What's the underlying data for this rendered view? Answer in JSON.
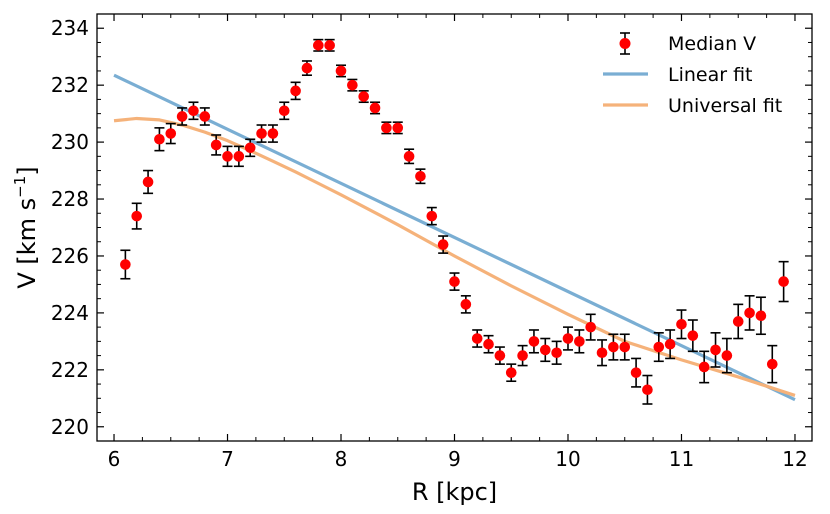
{
  "chart_data": {
    "type": "scatter",
    "title": "",
    "xlabel": "R [kpc]",
    "ylabel": "V [km s",
    "ylabel_sup": "−1",
    "ylabel_end": "]",
    "xlim": [
      5.85,
      12.15
    ],
    "ylim": [
      219.5,
      234.5
    ],
    "xticks": [
      "6",
      "7",
      "8",
      "9",
      "10",
      "11",
      "12"
    ],
    "yticks": [
      "220",
      "222",
      "224",
      "226",
      "228",
      "230",
      "232",
      "234"
    ],
    "legend_position": "top-right",
    "series": [
      {
        "name": "Median V",
        "kind": "points-with-errorbars",
        "color": "#ff0000",
        "x": [
          6.1,
          6.2,
          6.3,
          6.4,
          6.5,
          6.6,
          6.7,
          6.8,
          6.9,
          7.0,
          7.1,
          7.2,
          7.3,
          7.4,
          7.5,
          7.6,
          7.7,
          7.8,
          7.9,
          8.0,
          8.1,
          8.2,
          8.3,
          8.4,
          8.5,
          8.6,
          8.7,
          8.8,
          8.9,
          9.0,
          9.1,
          9.2,
          9.3,
          9.4,
          9.5,
          9.6,
          9.7,
          9.8,
          9.9,
          10.0,
          10.1,
          10.2,
          10.3,
          10.4,
          10.5,
          10.6,
          10.7,
          10.8,
          10.9,
          11.0,
          11.1,
          11.2,
          11.3,
          11.4,
          11.5,
          11.6,
          11.7,
          11.8,
          11.9
        ],
        "y": [
          225.7,
          227.4,
          228.6,
          230.1,
          230.3,
          230.9,
          231.1,
          230.9,
          229.9,
          229.5,
          229.5,
          229.8,
          230.3,
          230.3,
          231.1,
          231.8,
          232.6,
          233.4,
          233.4,
          232.5,
          232.0,
          231.6,
          231.2,
          230.5,
          230.5,
          229.5,
          228.8,
          227.4,
          226.4,
          225.1,
          224.3,
          223.1,
          222.9,
          222.5,
          221.9,
          222.5,
          223.0,
          222.7,
          222.6,
          223.1,
          223.0,
          223.5,
          222.6,
          222.8,
          222.8,
          221.9,
          221.3,
          222.8,
          222.9,
          223.6,
          223.2,
          222.1,
          222.7,
          222.5,
          223.7,
          224.0,
          223.9,
          222.2,
          225.1
        ],
        "yerr": [
          0.5,
          0.45,
          0.4,
          0.4,
          0.35,
          0.3,
          0.3,
          0.3,
          0.35,
          0.35,
          0.35,
          0.3,
          0.3,
          0.3,
          0.3,
          0.3,
          0.25,
          0.2,
          0.2,
          0.2,
          0.2,
          0.2,
          0.2,
          0.2,
          0.2,
          0.25,
          0.25,
          0.3,
          0.3,
          0.3,
          0.3,
          0.3,
          0.3,
          0.3,
          0.3,
          0.35,
          0.4,
          0.4,
          0.4,
          0.4,
          0.4,
          0.45,
          0.45,
          0.45,
          0.45,
          0.5,
          0.5,
          0.5,
          0.5,
          0.5,
          0.55,
          0.55,
          0.6,
          0.6,
          0.6,
          0.6,
          0.65,
          0.65,
          0.7
        ]
      },
      {
        "name": "Linear fit",
        "kind": "line",
        "color": "#7aaed3",
        "x": [
          6.0,
          12.0
        ],
        "y": [
          232.35,
          220.95
        ]
      },
      {
        "name": "Universal fit",
        "kind": "line",
        "color": "#f5b27a",
        "x": [
          6.0,
          6.2,
          6.4,
          6.6,
          6.8,
          7.0,
          7.2,
          7.4,
          7.6,
          7.8,
          8.0,
          8.5,
          9.0,
          9.5,
          10.0,
          10.5,
          11.0,
          11.5,
          12.0
        ],
        "y": [
          230.75,
          230.83,
          230.78,
          230.6,
          230.35,
          230.05,
          229.7,
          229.33,
          228.95,
          228.55,
          228.15,
          227.1,
          226.0,
          224.95,
          223.95,
          223.0,
          222.35,
          221.75,
          221.1
        ]
      }
    ]
  }
}
